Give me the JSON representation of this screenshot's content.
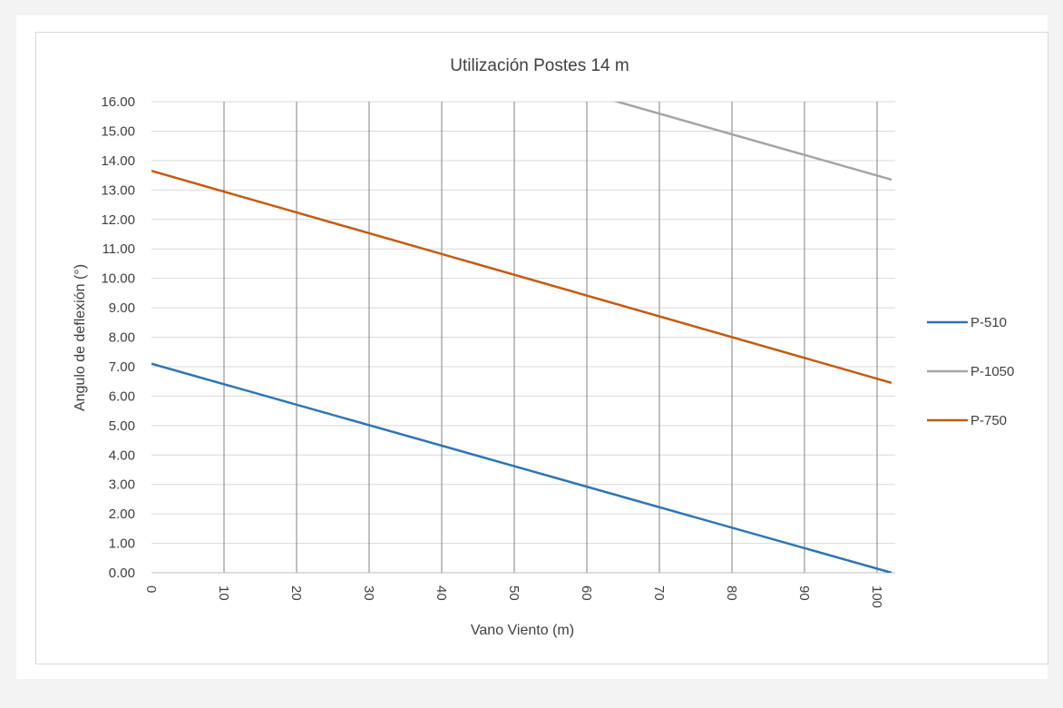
{
  "chart_data": {
    "type": "line",
    "title": "Utilización  Postes 14 m",
    "xlabel": "Vano Viento (m)",
    "ylabel": "Angulo de deflexión (°)",
    "xlim": [
      0,
      102
    ],
    "ylim": [
      0,
      16
    ],
    "x_ticks": [
      "0",
      "10",
      "20",
      "30",
      "40",
      "50",
      "60",
      "70",
      "80",
      "90",
      "100"
    ],
    "y_ticks": [
      "0.00",
      "1.00",
      "2.00",
      "3.00",
      "4.00",
      "5.00",
      "6.00",
      "7.00",
      "8.00",
      "9.00",
      "10.00",
      "11.00",
      "12.00",
      "13.00",
      "14.00",
      "15.00",
      "16.00"
    ],
    "grid": "vertical-major-dark, horizontal-light",
    "legend_position": "right",
    "series": [
      {
        "name": "P-510",
        "color": "#2e75b6",
        "x": [
          0,
          102
        ],
        "y": [
          7.1,
          0.0
        ]
      },
      {
        "name": "P-1050",
        "color": "#a5a5a5",
        "x": [
          0,
          102
        ],
        "y": [
          20.5,
          13.35
        ]
      },
      {
        "name": "P-750",
        "color": "#c55a11",
        "x": [
          0,
          102
        ],
        "y": [
          13.65,
          6.45
        ]
      }
    ]
  }
}
